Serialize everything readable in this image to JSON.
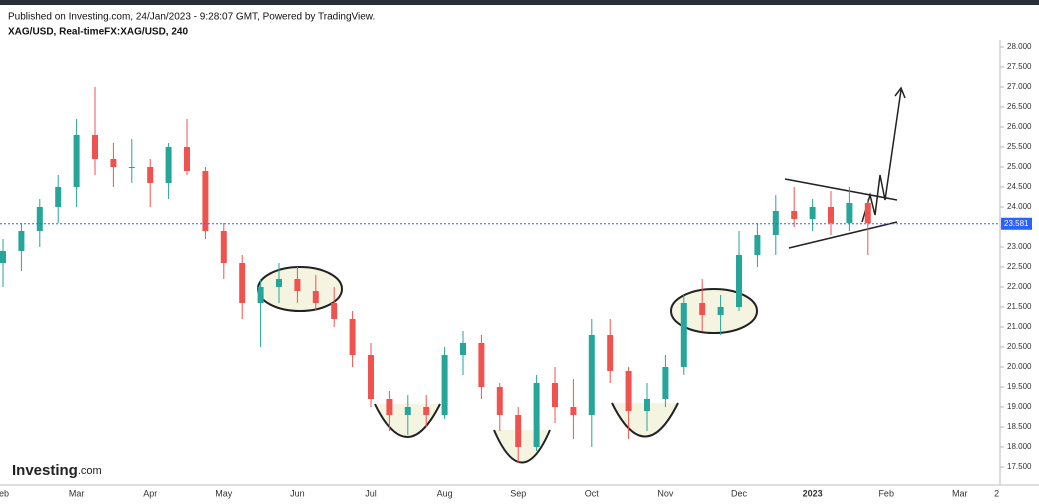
{
  "header": {
    "published": "Published on Investing.com, 24/Jan/2023 - 9:28:07 GMT, Powered by TradingView.",
    "symbol": "XAG/USD, Real-timeFX:XAG/USD, 240",
    "logo": "Investing",
    "logo_suffix": ".com"
  },
  "chart_data": {
    "type": "candlestick",
    "categories": [
      "eb",
      null,
      null,
      null,
      "Mar",
      null,
      null,
      null,
      "Apr",
      null,
      null,
      null,
      "May",
      null,
      null,
      null,
      "Jun",
      null,
      null,
      null,
      "Jul",
      null,
      null,
      null,
      "Aug",
      null,
      null,
      null,
      "Sep",
      null,
      null,
      null,
      "Oct",
      null,
      null,
      null,
      "Nov",
      null,
      null,
      null,
      "Dec",
      null,
      null,
      null,
      "2023",
      null,
      null,
      null,
      "Feb",
      null,
      null,
      null,
      "Mar",
      null,
      "2"
    ],
    "open": [
      22.6,
      22.9,
      23.4,
      24.0,
      24.5,
      25.8,
      25.2,
      25.0,
      25.0,
      24.6,
      25.5,
      24.9,
      23.4,
      22.6,
      21.6,
      22.0,
      22.2,
      21.9,
      21.6,
      21.2,
      20.3,
      19.2,
      18.8,
      19.0,
      18.8,
      20.3,
      20.6,
      19.5,
      18.8,
      18.0,
      19.6,
      19.0,
      18.8,
      20.8,
      19.9,
      18.9,
      19.2,
      20.0,
      21.6,
      21.3,
      21.5,
      22.8,
      23.3,
      23.9,
      23.7,
      24.0,
      23.6,
      24.1,
      null,
      null,
      null,
      null,
      null,
      null,
      null
    ],
    "high": [
      23.2,
      23.6,
      24.2,
      24.8,
      26.2,
      27.0,
      25.6,
      25.7,
      25.2,
      25.6,
      26.2,
      25.0,
      23.6,
      22.8,
      22.2,
      22.6,
      22.5,
      22.3,
      22.0,
      21.4,
      20.6,
      19.4,
      19.3,
      19.3,
      20.5,
      20.9,
      20.8,
      19.6,
      19.0,
      19.8,
      20.0,
      19.7,
      21.2,
      21.2,
      20.0,
      19.6,
      20.3,
      21.8,
      22.2,
      21.8,
      23.4,
      23.6,
      24.3,
      24.5,
      24.2,
      24.4,
      24.5,
      24.2,
      null,
      null,
      null,
      null,
      null,
      null,
      null
    ],
    "low": [
      22.0,
      22.4,
      23.0,
      23.6,
      24.0,
      24.8,
      24.5,
      24.6,
      24.0,
      24.2,
      24.8,
      23.2,
      22.2,
      21.2,
      20.5,
      21.6,
      21.6,
      21.4,
      21.0,
      20.0,
      19.0,
      18.4,
      18.3,
      18.5,
      18.7,
      19.8,
      19.2,
      18.4,
      17.6,
      17.9,
      18.6,
      18.2,
      18.0,
      19.6,
      18.2,
      18.4,
      19.0,
      19.8,
      20.9,
      20.8,
      21.4,
      22.5,
      22.8,
      23.5,
      23.4,
      23.3,
      23.4,
      22.8,
      null,
      null,
      null,
      null,
      null,
      null,
      null
    ],
    "close": [
      22.9,
      23.4,
      24.0,
      24.5,
      25.8,
      25.2,
      25.0,
      25.0,
      24.6,
      25.5,
      24.9,
      23.4,
      22.6,
      21.6,
      22.0,
      22.2,
      21.9,
      21.6,
      21.2,
      20.3,
      19.2,
      18.8,
      19.0,
      18.8,
      20.3,
      20.6,
      19.5,
      18.8,
      18.0,
      19.6,
      19.0,
      18.8,
      20.8,
      19.9,
      18.9,
      19.2,
      20.0,
      21.6,
      21.3,
      21.5,
      22.8,
      23.3,
      23.9,
      23.7,
      24.0,
      23.6,
      24.1,
      23.6,
      null,
      null,
      null,
      null,
      null,
      null,
      null
    ],
    "up_color": "#26a69a",
    "down_color": "#ef5350",
    "last_price": {
      "value": 23.581,
      "label": "23.581",
      "color": "#2962ff"
    },
    "ylim": [
      17.25,
      28.15
    ],
    "yticks": [
      {
        "value": 17.5,
        "label": "17.500"
      },
      {
        "value": 18,
        "label": "18.000"
      },
      {
        "value": 18.5,
        "label": "18.500"
      },
      {
        "value": 19,
        "label": "19.000"
      },
      {
        "value": 19.5,
        "label": "19.500"
      },
      {
        "value": 20,
        "label": "20.000"
      },
      {
        "value": 20.5,
        "label": "20.500"
      },
      {
        "value": 21,
        "label": "21.000"
      },
      {
        "value": 21.5,
        "label": "21.500"
      },
      {
        "value": 22,
        "label": "22.000"
      },
      {
        "value": 22.5,
        "label": "22.500"
      },
      {
        "value": 23,
        "label": "23.000"
      },
      {
        "value": 23.5,
        "label": "23.500"
      },
      {
        "value": 24,
        "label": "24.000"
      },
      {
        "value": 24.5,
        "label": "24.500"
      },
      {
        "value": 25,
        "label": "25.000"
      },
      {
        "value": 25.5,
        "label": "25.500"
      },
      {
        "value": 26,
        "label": "26.000"
      },
      {
        "value": 26.5,
        "label": "26.500"
      },
      {
        "value": 27,
        "label": "27.000"
      },
      {
        "value": 27.5,
        "label": "27.500"
      },
      {
        "value": 28,
        "label": "28.000"
      }
    ]
  }
}
